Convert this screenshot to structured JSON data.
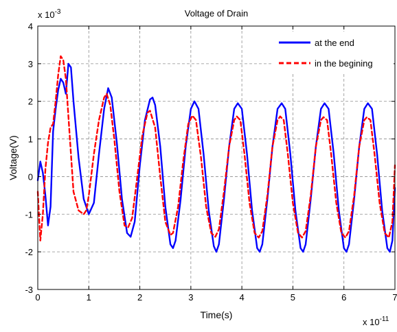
{
  "chart_data": {
    "type": "line",
    "title": "Voltage of Drain",
    "xlabel": "Time(s)",
    "ylabel": "Voltage(V)",
    "x_multiplier": "x 10",
    "x_exponent": "-11",
    "y_multiplier": "x 10",
    "y_exponent": "-3",
    "xlim": [
      0,
      7
    ],
    "ylim": [
      -3,
      4
    ],
    "x_ticks": [
      "0",
      "1",
      "2",
      "3",
      "4",
      "5",
      "6",
      "7"
    ],
    "y_ticks": [
      "-3",
      "-2",
      "-1",
      "0",
      "1",
      "2",
      "3",
      "4"
    ],
    "grid": true,
    "legend_position": "top-right",
    "series": [
      {
        "name": "at the end",
        "color": "#0000ff",
        "style": "solid",
        "x": [
          0.0,
          0.05,
          0.1,
          0.15,
          0.2,
          0.25,
          0.3,
          0.35,
          0.4,
          0.45,
          0.5,
          0.55,
          0.6,
          0.65,
          0.7,
          0.8,
          0.9,
          1.0,
          1.1,
          1.2,
          1.3,
          1.38,
          1.45,
          1.55,
          1.65,
          1.75,
          1.82,
          1.9,
          2.0,
          2.1,
          2.2,
          2.25,
          2.3,
          2.4,
          2.5,
          2.6,
          2.65,
          2.7,
          2.8,
          2.9,
          3.0,
          3.07,
          3.15,
          3.25,
          3.35,
          3.45,
          3.5,
          3.55,
          3.65,
          3.75,
          3.85,
          3.92,
          4.0,
          4.1,
          4.2,
          4.3,
          4.35,
          4.4,
          4.5,
          4.6,
          4.7,
          4.78,
          4.85,
          4.95,
          5.05,
          5.15,
          5.2,
          5.25,
          5.35,
          5.45,
          5.55,
          5.62,
          5.7,
          5.8,
          5.9,
          6.0,
          6.05,
          6.1,
          6.2,
          6.3,
          6.4,
          6.47,
          6.55,
          6.65,
          6.75,
          6.85,
          6.9,
          6.95,
          7.0
        ],
        "y": [
          -0.1,
          0.4,
          0.1,
          -0.5,
          -1.3,
          -0.8,
          1.2,
          1.8,
          2.3,
          2.6,
          2.5,
          2.2,
          3.0,
          2.9,
          2.0,
          0.5,
          -0.6,
          -1.0,
          -0.7,
          0.6,
          1.8,
          2.35,
          2.1,
          0.9,
          -0.6,
          -1.5,
          -1.6,
          -1.2,
          0.3,
          1.5,
          2.05,
          2.1,
          1.9,
          0.8,
          -0.8,
          -1.8,
          -1.9,
          -1.7,
          -0.6,
          0.8,
          1.8,
          2.0,
          1.8,
          0.6,
          -0.9,
          -1.85,
          -2.0,
          -1.8,
          -0.6,
          0.8,
          1.8,
          1.95,
          1.8,
          0.6,
          -0.9,
          -1.9,
          -2.0,
          -1.8,
          -0.6,
          0.8,
          1.8,
          1.95,
          1.8,
          0.6,
          -0.9,
          -1.9,
          -2.0,
          -1.8,
          -0.6,
          0.8,
          1.8,
          1.95,
          1.8,
          0.6,
          -0.9,
          -1.9,
          -2.0,
          -1.8,
          -0.6,
          0.8,
          1.8,
          1.95,
          1.8,
          0.6,
          -0.9,
          -1.9,
          -2.0,
          -1.7,
          -0.3
        ]
      },
      {
        "name": "in the begining",
        "color": "#ff0000",
        "style": "dashed",
        "x": [
          0.0,
          0.05,
          0.1,
          0.15,
          0.2,
          0.25,
          0.3,
          0.35,
          0.4,
          0.45,
          0.5,
          0.55,
          0.6,
          0.65,
          0.7,
          0.8,
          0.9,
          0.95,
          1.0,
          1.1,
          1.2,
          1.3,
          1.35,
          1.42,
          1.5,
          1.6,
          1.7,
          1.77,
          1.85,
          1.95,
          2.05,
          2.15,
          2.2,
          2.3,
          2.4,
          2.5,
          2.6,
          2.65,
          2.75,
          2.85,
          2.95,
          3.03,
          3.1,
          3.2,
          3.3,
          3.4,
          3.48,
          3.55,
          3.65,
          3.75,
          3.85,
          3.9,
          3.97,
          4.05,
          4.15,
          4.25,
          4.33,
          4.4,
          4.5,
          4.6,
          4.7,
          4.75,
          4.82,
          4.9,
          5.0,
          5.1,
          5.18,
          5.25,
          5.35,
          5.45,
          5.55,
          5.6,
          5.67,
          5.75,
          5.85,
          5.95,
          6.03,
          6.1,
          6.2,
          6.3,
          6.4,
          6.45,
          6.52,
          6.6,
          6.7,
          6.8,
          6.88,
          6.95,
          7.0
        ],
        "y": [
          -0.4,
          -1.7,
          -1.0,
          0.2,
          0.9,
          1.3,
          1.4,
          2.0,
          2.7,
          3.2,
          3.1,
          2.6,
          1.6,
          0.6,
          -0.4,
          -0.9,
          -1.0,
          -0.9,
          -0.5,
          0.6,
          1.5,
          2.1,
          2.2,
          1.9,
          1.0,
          -0.4,
          -1.3,
          -1.35,
          -1.1,
          0.0,
          1.1,
          1.7,
          1.75,
          1.3,
          0.0,
          -1.2,
          -1.55,
          -1.5,
          -0.8,
          0.4,
          1.4,
          1.62,
          1.5,
          0.5,
          -0.8,
          -1.5,
          -1.6,
          -1.4,
          -0.4,
          0.8,
          1.5,
          1.6,
          1.5,
          0.6,
          -0.7,
          -1.5,
          -1.62,
          -1.45,
          -0.5,
          0.8,
          1.5,
          1.6,
          1.5,
          0.6,
          -0.7,
          -1.5,
          -1.62,
          -1.45,
          -0.5,
          0.8,
          1.5,
          1.58,
          1.5,
          0.6,
          -0.7,
          -1.5,
          -1.62,
          -1.45,
          -0.5,
          0.8,
          1.5,
          1.58,
          1.5,
          0.6,
          -0.7,
          -1.5,
          -1.62,
          -1.2,
          0.3
        ]
      }
    ]
  }
}
